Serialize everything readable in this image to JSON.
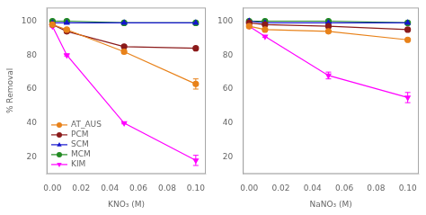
{
  "chart_data": [
    {
      "type": "line",
      "xlabel": "KNO₃ (M)",
      "ylabel": "% Removal",
      "x": [
        0.0,
        0.01,
        0.05,
        0.1
      ],
      "series": [
        {
          "name": "AT_AUS",
          "color": "#E8821A",
          "marker": "circle",
          "values": [
            98,
            95,
            82,
            63
          ],
          "errors": [
            0.5,
            0.5,
            1,
            3
          ]
        },
        {
          "name": "PCM",
          "color": "#8B1A1A",
          "marker": "circle",
          "values": [
            98,
            94,
            85,
            84
          ],
          "errors": [
            0.5,
            0.5,
            0.5,
            0.5
          ]
        },
        {
          "name": "SCM",
          "color": "#1414CD",
          "marker": "triangle_up",
          "values": [
            99,
            99,
            99,
            99
          ],
          "errors": [
            0.5,
            0.5,
            0.5,
            0.5
          ]
        },
        {
          "name": "MCM",
          "color": "#228B22",
          "marker": "circle",
          "values": [
            100,
            100,
            99,
            99
          ],
          "errors": [
            0.5,
            0.5,
            0.5,
            0.5
          ]
        },
        {
          "name": "KIM",
          "color": "#FF00FF",
          "marker": "triangle_down",
          "values": [
            97,
            80,
            40,
            18
          ],
          "errors": [
            0.5,
            0.5,
            0.5,
            3
          ]
        }
      ],
      "xlim": [
        -0.004,
        0.107
      ],
      "xticks": [
        {
          "value": 0.0,
          "label": "0.00"
        },
        0.02,
        0.04,
        0.06,
        0.08,
        {
          "value": 0.1,
          "label": "0.10"
        }
      ],
      "ylim": [
        10,
        108
      ],
      "yticks": [
        20,
        40,
        60,
        80,
        100
      ],
      "grid": false,
      "legend": "lower left"
    },
    {
      "type": "line",
      "xlabel": "NaNO₃ (M)",
      "x": [
        0.0,
        0.01,
        0.05,
        0.1
      ],
      "series": [
        {
          "name": "AT_AUS",
          "color": "#E8821A",
          "marker": "circle",
          "values": [
            97,
            95,
            94,
            89
          ],
          "errors": [
            0.5,
            0.5,
            0.5,
            0.5
          ]
        },
        {
          "name": "PCM",
          "color": "#8B1A1A",
          "marker": "circle",
          "values": [
            99,
            98,
            97,
            95
          ],
          "errors": [
            0.5,
            0.5,
            0.5,
            0.5
          ]
        },
        {
          "name": "SCM",
          "color": "#1414CD",
          "marker": "triangle_up",
          "values": [
            100,
            99,
            99,
            99
          ],
          "errors": [
            0.5,
            0.5,
            0.5,
            0.5
          ]
        },
        {
          "name": "MCM",
          "color": "#228B22",
          "marker": "circle",
          "values": [
            100,
            100,
            100,
            99
          ],
          "errors": [
            0.5,
            0.5,
            0.5,
            0.5
          ]
        },
        {
          "name": "KIM",
          "color": "#FF00FF",
          "marker": "triangle_down",
          "values": [
            97,
            91,
            68,
            55
          ],
          "errors": [
            0.5,
            0.5,
            2,
            3
          ]
        }
      ],
      "xlim": [
        -0.004,
        0.107
      ],
      "xticks": [
        {
          "value": 0.0,
          "label": "0.00"
        },
        0.02,
        0.04,
        0.06,
        0.08,
        {
          "value": 0.1,
          "label": "0.10"
        }
      ],
      "ylim": [
        10,
        108
      ],
      "yticks": [
        20,
        40,
        60,
        80,
        100
      ],
      "grid": false
    }
  ]
}
